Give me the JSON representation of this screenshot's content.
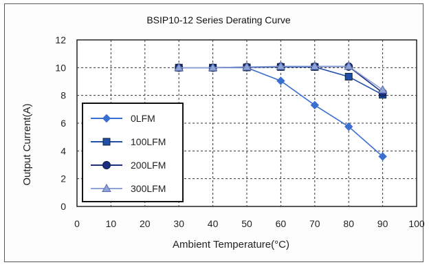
{
  "chart_data": {
    "type": "line",
    "title": "BSIP10-12 Series Derating Curve",
    "xlabel": "Ambient Temperature(°C)",
    "ylabel": "Output Current(A)",
    "xlim": [
      0,
      100
    ],
    "ylim": [
      0,
      12
    ],
    "xticks": [
      0,
      10,
      20,
      30,
      40,
      50,
      60,
      70,
      80,
      90,
      100
    ],
    "yticks": [
      0,
      2,
      4,
      6,
      8,
      10,
      12
    ],
    "grid": true,
    "legend_position": "left",
    "series": [
      {
        "name": "0LFM",
        "marker": "diamond",
        "color": "#3a6fd0",
        "x": [
          30,
          40,
          50,
          60,
          70,
          80,
          90
        ],
        "y": [
          10,
          10,
          10,
          9.05,
          7.3,
          5.75,
          3.6
        ]
      },
      {
        "name": "100LFM",
        "marker": "square",
        "color": "#1f4fa8",
        "x": [
          30,
          40,
          50,
          60,
          70,
          80,
          90
        ],
        "y": [
          10,
          10,
          10.02,
          10.05,
          10.05,
          9.35,
          8.05
        ]
      },
      {
        "name": "200LFM",
        "marker": "circle",
        "color": "#1a2f80",
        "x": [
          30,
          40,
          50,
          60,
          70,
          80,
          90
        ],
        "y": [
          10,
          10,
          10.05,
          10.08,
          10.08,
          10.08,
          8.2
        ]
      },
      {
        "name": "300LFM",
        "marker": "triangle",
        "color": "#8fa3d8",
        "x": [
          30,
          40,
          50,
          60,
          70,
          80,
          90
        ],
        "y": [
          10,
          10,
          10.05,
          10.1,
          10.1,
          10.1,
          8.4
        ]
      }
    ]
  }
}
